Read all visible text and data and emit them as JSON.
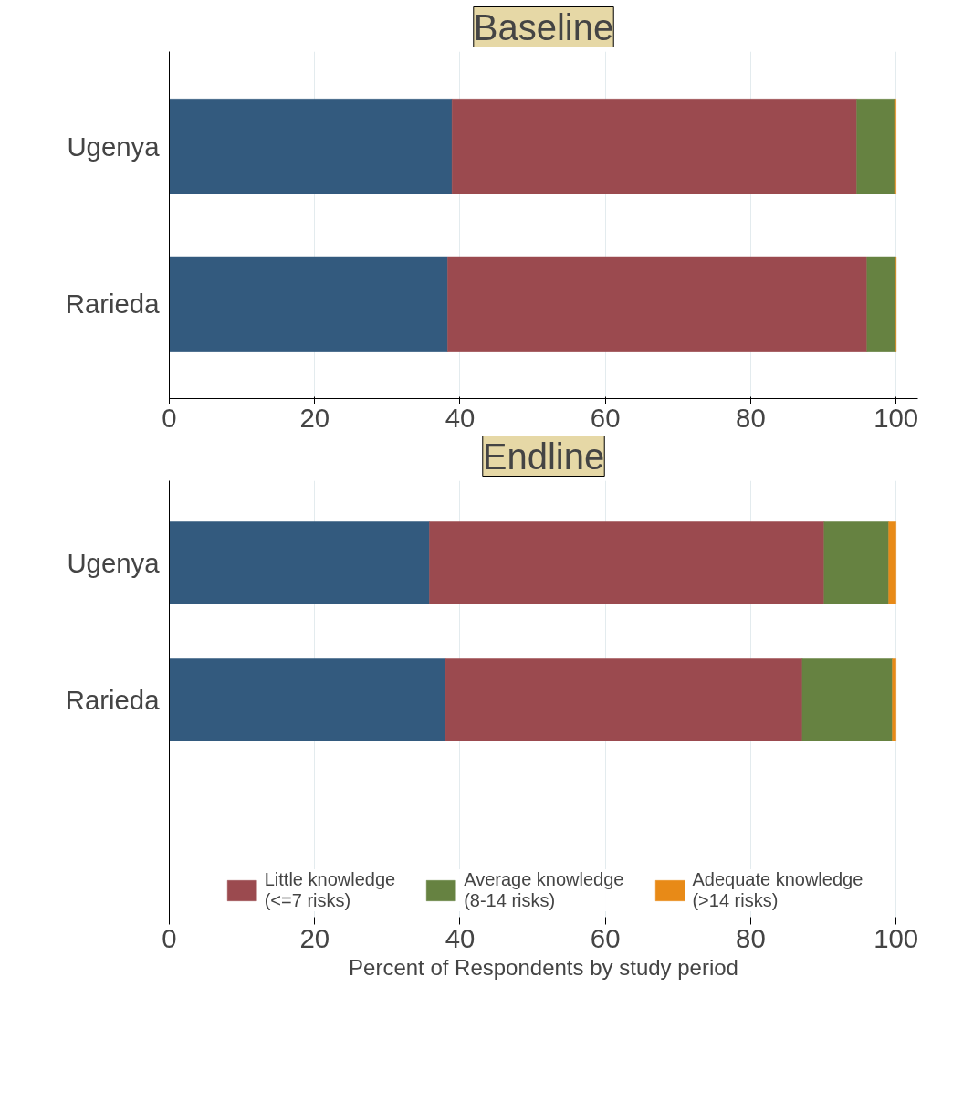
{
  "chart_data": [
    {
      "type": "bar",
      "orientation": "horizontal",
      "stacked": true,
      "title": "Baseline",
      "categories": [
        "Ugenya",
        "Rarieda"
      ],
      "series": [
        {
          "color": "#335a7e",
          "values": [
            38.9,
            38.3
          ]
        },
        {
          "color": "#9b4a4f",
          "values": [
            55.7,
            57.7
          ]
        },
        {
          "color": "#668241",
          "values": [
            5.2,
            4.0
          ]
        },
        {
          "color": "#e88a17",
          "values": [
            0.2,
            0
          ]
        }
      ],
      "xlim": [
        0,
        103
      ],
      "xticks": [
        0,
        20,
        40,
        60,
        80,
        100
      ],
      "grid": "x",
      "legend": false
    },
    {
      "type": "bar",
      "orientation": "horizontal",
      "stacked": true,
      "title": "Endline",
      "xlabel": "Percent of Respondents by study period",
      "categories": [
        "Ugenya",
        "Rarieda"
      ],
      "series": [
        {
          "color": "#335a7e",
          "values": [
            35.8,
            38.0
          ]
        },
        {
          "name": "Little knowledge\n(<=7 risks)",
          "color": "#9b4a4f",
          "values": [
            54.3,
            49.1
          ]
        },
        {
          "name": "Average knowledge\n(8-14 risks)",
          "color": "#668241",
          "values": [
            8.9,
            12.4
          ]
        },
        {
          "name": "Adequate knowledge\n(>14 risks)",
          "color": "#e88a17",
          "values": [
            1.0,
            0.5
          ]
        }
      ],
      "xlim": [
        0,
        103
      ],
      "xticks": [
        0,
        20,
        40,
        60,
        80,
        100
      ],
      "grid": "x",
      "legend": "bottom"
    }
  ]
}
